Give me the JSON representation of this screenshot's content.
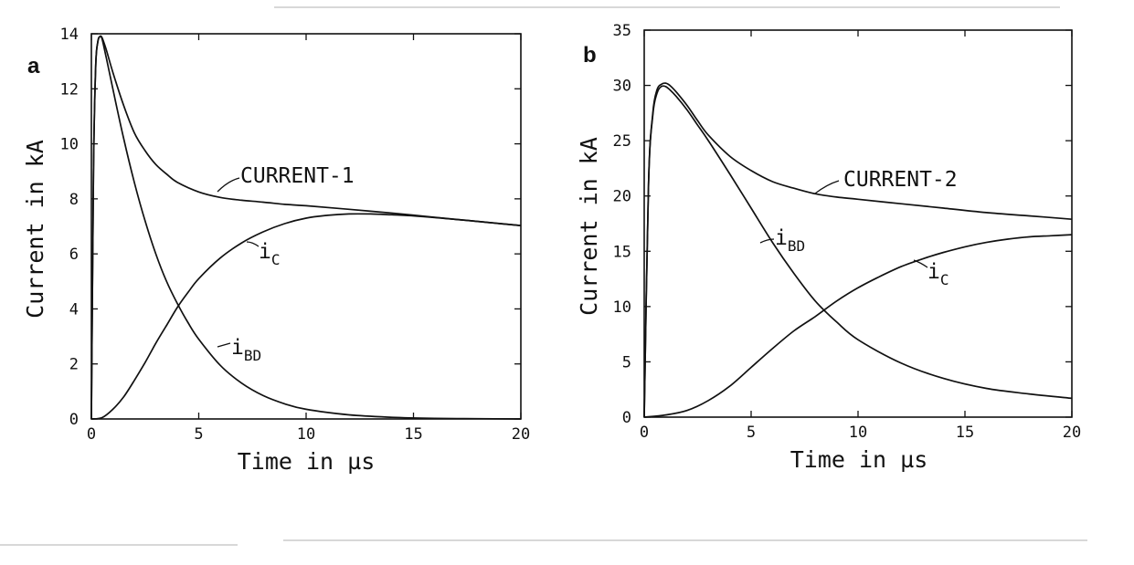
{
  "chart_data": [
    {
      "type": "line",
      "panel_label": "a",
      "xlabel": "Time in µs",
      "ylabel": "Current in kA",
      "xlim": [
        0,
        20
      ],
      "ylim": [
        0,
        14
      ],
      "x_ticks": [
        0,
        5,
        10,
        15,
        20
      ],
      "y_ticks": [
        0,
        2,
        4,
        6,
        8,
        10,
        12,
        14
      ],
      "grid": false,
      "legend": "none",
      "series": [
        {
          "name": "CURRENT-1",
          "x": [
            0,
            0.1,
            0.2,
            0.3,
            0.4,
            0.5,
            0.7,
            1,
            1.5,
            2,
            2.5,
            3,
            3.5,
            4,
            5,
            6,
            7,
            8,
            9,
            10,
            12,
            14,
            16,
            18,
            20
          ],
          "y": [
            0,
            9,
            12.8,
            13.7,
            13.9,
            13.85,
            13.4,
            12.6,
            11.4,
            10.4,
            9.75,
            9.25,
            8.9,
            8.6,
            8.25,
            8.05,
            7.95,
            7.88,
            7.8,
            7.75,
            7.62,
            7.48,
            7.33,
            7.18,
            7.03
          ]
        },
        {
          "name": "i_BD",
          "x": [
            0,
            0.1,
            0.2,
            0.3,
            0.4,
            0.5,
            0.7,
            1,
            1.5,
            2,
            2.5,
            3,
            3.5,
            4,
            4.5,
            5,
            6,
            7,
            8,
            9,
            10,
            12,
            14,
            16,
            18,
            20
          ],
          "y": [
            0,
            9,
            12.8,
            13.7,
            13.9,
            13.8,
            13.1,
            12.0,
            10.2,
            8.6,
            7.2,
            6.0,
            5.0,
            4.2,
            3.5,
            2.9,
            1.95,
            1.3,
            0.85,
            0.55,
            0.35,
            0.15,
            0.06,
            0.02,
            0.01,
            0
          ]
        },
        {
          "name": "i_C",
          "x": [
            0,
            0.5,
            1,
            1.5,
            2,
            2.5,
            3,
            3.5,
            4,
            4.5,
            5,
            6,
            7,
            8,
            9,
            10,
            11,
            12,
            13,
            14,
            15,
            16,
            17,
            18,
            19,
            20
          ],
          "y": [
            0,
            0.05,
            0.35,
            0.8,
            1.4,
            2.05,
            2.75,
            3.4,
            4.05,
            4.6,
            5.1,
            5.85,
            6.4,
            6.8,
            7.1,
            7.3,
            7.4,
            7.45,
            7.45,
            7.42,
            7.38,
            7.32,
            7.25,
            7.18,
            7.1,
            7.03
          ]
        }
      ],
      "annotations": [
        {
          "text": "CURRENT-1",
          "series": "CURRENT-1"
        },
        {
          "text": "i",
          "sub": "C",
          "series": "i_C"
        },
        {
          "text": "i",
          "sub": "BD",
          "series": "i_BD"
        }
      ]
    },
    {
      "type": "line",
      "panel_label": "b",
      "xlabel": "Time in µs",
      "ylabel": "Current in kA",
      "xlim": [
        0,
        20
      ],
      "ylim": [
        0,
        35
      ],
      "x_ticks": [
        0,
        5,
        10,
        15,
        20
      ],
      "y_ticks": [
        0,
        5,
        10,
        15,
        20,
        25,
        30,
        35
      ],
      "grid": false,
      "legend": "none",
      "series": [
        {
          "name": "CURRENT-2",
          "x": [
            0,
            0.2,
            0.4,
            0.6,
            0.8,
            1,
            1.2,
            1.5,
            2,
            2.5,
            3,
            4,
            5,
            6,
            7,
            8,
            9,
            10,
            12,
            14,
            16,
            18,
            20
          ],
          "y": [
            0,
            21,
            27.5,
            29.6,
            30.1,
            30.2,
            30.0,
            29.4,
            28.2,
            26.8,
            25.5,
            23.6,
            22.3,
            21.3,
            20.7,
            20.2,
            19.9,
            19.7,
            19.3,
            18.9,
            18.5,
            18.2,
            17.9
          ]
        },
        {
          "name": "i_BD",
          "x": [
            0,
            0.2,
            0.4,
            0.6,
            0.8,
            1,
            1.2,
            1.5,
            2,
            2.5,
            3,
            4,
            5,
            6,
            7,
            8,
            9,
            10,
            12,
            14,
            16,
            18,
            20
          ],
          "y": [
            0,
            21,
            27.3,
            29.3,
            29.9,
            29.9,
            29.6,
            29.0,
            27.8,
            26.4,
            25.0,
            22.0,
            18.9,
            15.8,
            13.0,
            10.5,
            8.6,
            7.0,
            4.9,
            3.5,
            2.6,
            2.1,
            1.7
          ]
        },
        {
          "name": "i_C",
          "x": [
            0,
            1,
            2,
            3,
            4,
            5,
            6,
            7,
            8,
            9,
            10,
            11,
            12,
            13,
            14,
            15,
            16,
            17,
            18,
            19,
            20
          ],
          "y": [
            0,
            0.2,
            0.6,
            1.5,
            2.8,
            4.5,
            6.2,
            7.8,
            9.1,
            10.5,
            11.7,
            12.7,
            13.6,
            14.3,
            14.9,
            15.4,
            15.8,
            16.1,
            16.3,
            16.4,
            16.5
          ]
        }
      ],
      "annotations": [
        {
          "text": "CURRENT-2",
          "series": "CURRENT-2"
        },
        {
          "text": "i",
          "sub": "BD",
          "series": "i_BD"
        },
        {
          "text": "i",
          "sub": "C",
          "series": "i_C"
        }
      ]
    }
  ]
}
